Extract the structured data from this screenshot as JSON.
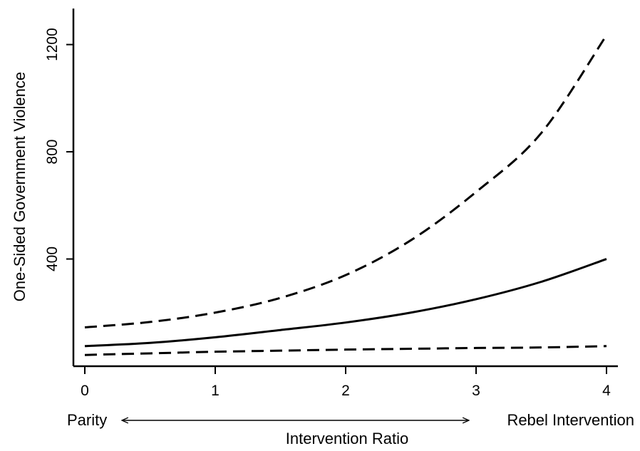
{
  "chart_data": {
    "type": "line",
    "title": "",
    "xlabel": "Intervention Ratio",
    "ylabel": "One-Sided Government Violence",
    "xlim": [
      0,
      4
    ],
    "ylim": [
      0,
      1260
    ],
    "x_ticks": [
      0,
      1,
      2,
      3,
      4
    ],
    "x_tick_labels": [
      "0",
      "1",
      "2",
      "3",
      "4"
    ],
    "y_ticks": [
      400,
      800,
      1200
    ],
    "y_tick_labels": [
      "400",
      "800",
      "1200"
    ],
    "grid": false,
    "legend": "none",
    "x_annotation_left": "Parity",
    "x_annotation_right": "Rebel Intervention",
    "series": [
      {
        "style": "solid",
        "x": [
          0,
          0.5,
          1,
          1.5,
          2,
          2.5,
          3,
          3.5,
          4
        ],
        "values": [
          75,
          87,
          108,
          135,
          163,
          200,
          250,
          315,
          400
        ]
      },
      {
        "style": "dashed",
        "x": [
          0,
          0.5,
          1,
          1.5,
          2,
          2.5,
          3,
          3.5,
          4
        ],
        "values": [
          145,
          165,
          200,
          255,
          340,
          470,
          650,
          870,
          1235
        ]
      },
      {
        "style": "dashed",
        "x": [
          0,
          0.5,
          1,
          1.5,
          2,
          2.5,
          3,
          3.5,
          4
        ],
        "values": [
          42,
          48,
          54,
          58,
          62,
          65,
          68,
          70,
          75
        ]
      }
    ]
  }
}
